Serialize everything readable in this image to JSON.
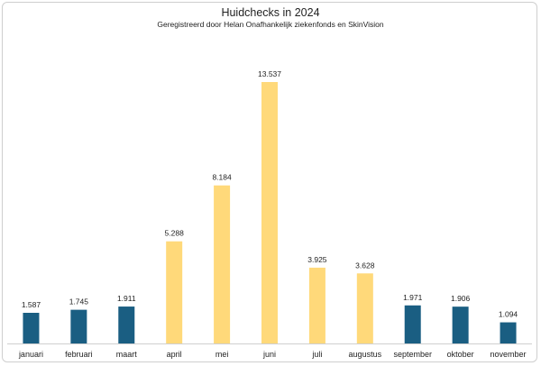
{
  "chart_data": {
    "type": "bar",
    "title": "Huidchecks in 2024",
    "subtitle": "Geregistreerd door Helan Onafhankelijk ziekenfonds en SkinVision",
    "categories": [
      "januari",
      "februari",
      "maart",
      "april",
      "mei",
      "juni",
      "juli",
      "augustus",
      "september",
      "oktober",
      "november"
    ],
    "values": [
      1587,
      1745,
      1911,
      5288,
      8184,
      13537,
      3925,
      3628,
      1971,
      1906,
      1094
    ],
    "value_labels": [
      "1.587",
      "1.745",
      "1.911",
      "5.288",
      "8.184",
      "13.537",
      "3.925",
      "3.628",
      "1.971",
      "1.906",
      "1.094"
    ],
    "bar_colors": [
      "#1a5e82",
      "#1a5e82",
      "#1a5e82",
      "#ffd97a",
      "#ffd97a",
      "#ffd97a",
      "#ffd97a",
      "#ffd97a",
      "#1a5e82",
      "#1a5e82",
      "#1a5e82"
    ],
    "xlabel": "",
    "ylabel": "",
    "ylim": [
      0,
      14000
    ],
    "grid": false,
    "legend": "none"
  }
}
